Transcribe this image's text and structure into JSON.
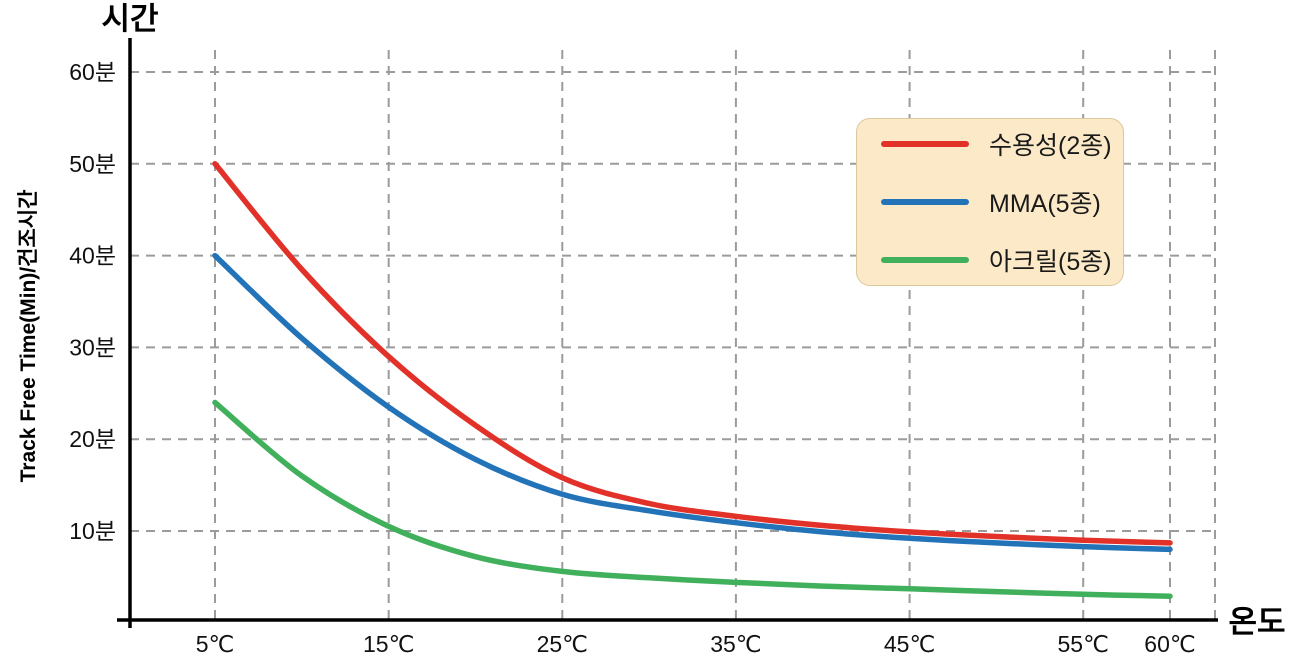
{
  "chart": {
    "top_axis_label": "시간",
    "right_axis_label": "온도",
    "colors": {
      "grid": "#9b9b9b",
      "axis": "#000000",
      "legend_bg": "#fbe9c7",
      "legend_border": "#ddc89e"
    }
  },
  "chart_data": {
    "type": "line",
    "title": "",
    "xlabel": "온도",
    "ylabel": "Track Free Time(Min)/건조시간",
    "x_unit": "℃",
    "y_unit": "분",
    "xlim": [
      0,
      62.5
    ],
    "ylim": [
      0,
      63.5
    ],
    "grid": true,
    "grid_style": "dashed",
    "legend_position": "top-right",
    "x_ticks": [
      5,
      15,
      25,
      35,
      45,
      55,
      60
    ],
    "x_tick_labels": [
      "5℃",
      "15℃",
      "25℃",
      "35℃",
      "45℃",
      "55℃",
      "60℃"
    ],
    "y_ticks": [
      10,
      20,
      30,
      40,
      50,
      60
    ],
    "y_tick_labels": [
      "10분",
      "20분",
      "30분",
      "40분",
      "50분",
      "60분"
    ],
    "x": [
      5,
      10,
      15,
      20,
      25,
      30,
      35,
      40,
      45,
      50,
      55,
      60
    ],
    "series": [
      {
        "name": "수용성(2종)",
        "color": "#e23128",
        "values": [
          50,
          38.5,
          29,
          21.5,
          15.8,
          13,
          11.6,
          10.6,
          9.9,
          9.4,
          9.0,
          8.7
        ]
      },
      {
        "name": "MMA(5종)",
        "color": "#2273b8",
        "values": [
          40,
          31,
          23.5,
          17.8,
          14,
          12.2,
          10.9,
          9.9,
          9.2,
          8.7,
          8.3,
          8.0
        ]
      },
      {
        "name": "아크릴(5종)",
        "color": "#41b05c",
        "values": [
          24,
          16,
          10.5,
          7.2,
          5.6,
          4.9,
          4.4,
          4.0,
          3.7,
          3.4,
          3.1,
          2.9
        ]
      }
    ]
  }
}
